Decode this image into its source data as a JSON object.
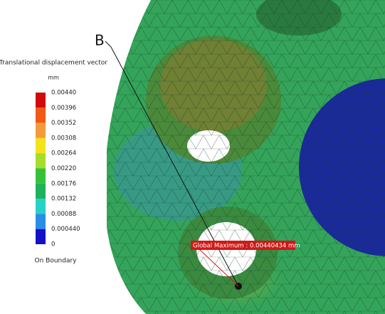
{
  "legend": {
    "title": "Translational displacement vector",
    "unit": "mm",
    "labels": [
      "0.00440",
      "0.00396",
      "0.00352",
      "0.00308",
      "0.00264",
      "0.00220",
      "0.00176",
      "0.00132",
      "0.00088",
      "0.000440",
      "0"
    ],
    "colors": [
      "#d10a0a",
      "#ef5a16",
      "#f49a3a",
      "#f5e21c",
      "#a6dc2c",
      "#35c23a",
      "#1fb25a",
      "#28d0c8",
      "#2a8ee6",
      "#1410c8"
    ],
    "footer": "On Boundary"
  },
  "annotations": {
    "point_label": "B",
    "max_label": "Global Maximum : 0.00440434 mm"
  }
}
